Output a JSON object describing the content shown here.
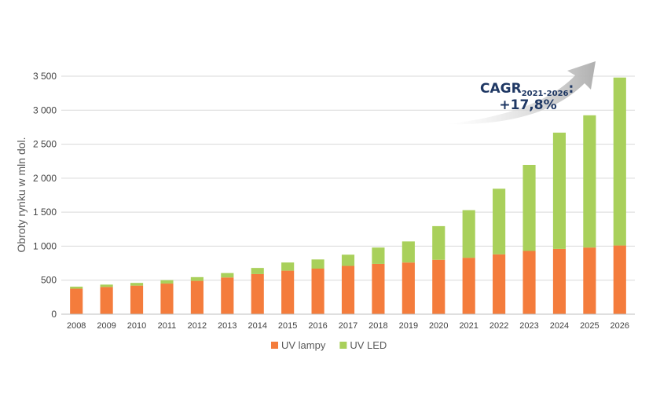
{
  "chart_data": {
    "type": "bar",
    "stacked": true,
    "ylabel": "Obroty rynku w mln dol.",
    "xlabel": "",
    "title": "",
    "ylim": [
      0,
      3500
    ],
    "yticks": [
      0,
      500,
      1000,
      1500,
      2000,
      2500,
      3000,
      3500
    ],
    "ytick_labels": [
      "0",
      "500",
      "1 000",
      "1 500",
      "2 000",
      "2 500",
      "3 000",
      "3 500"
    ],
    "grid": true,
    "legend_position": "bottom",
    "categories": [
      "2008",
      "2009",
      "2010",
      "2011",
      "2012",
      "2013",
      "2014",
      "2015",
      "2016",
      "2017",
      "2018",
      "2019",
      "2020",
      "2021",
      "2022",
      "2023",
      "2024",
      "2025",
      "2026"
    ],
    "series": [
      {
        "name": "UV lampy",
        "color": "#f47c3c",
        "values": [
          375,
          400,
          420,
          450,
          490,
          540,
          590,
          640,
          670,
          710,
          740,
          760,
          800,
          830,
          880,
          930,
          960,
          980,
          1010
        ]
      },
      {
        "name": "UV LED",
        "color": "#a9d05b",
        "values": [
          30,
          35,
          40,
          50,
          55,
          65,
          90,
          120,
          135,
          165,
          240,
          310,
          495,
          700,
          965,
          1265,
          1710,
          1945,
          2470
        ]
      }
    ],
    "annotation": {
      "cagr_main": "CAGR",
      "cagr_sub": "2021-2026",
      "cagr_colon": ":",
      "cagr_value": "+17,8%",
      "arrow_color": "#bfbfbf"
    }
  }
}
